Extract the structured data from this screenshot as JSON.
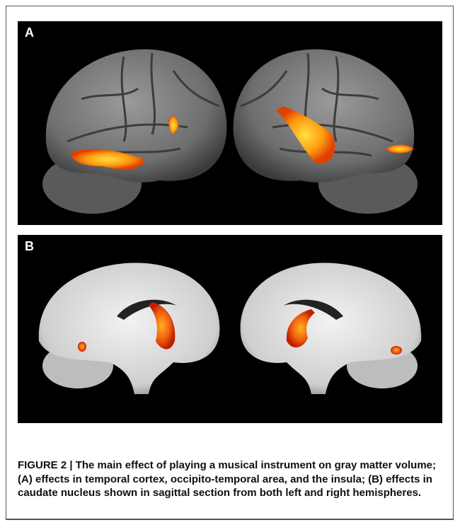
{
  "figure": {
    "panels": [
      {
        "label": "A"
      },
      {
        "label": "B"
      }
    ],
    "label": "FIGURE 2 |",
    "caption": "The main effect of playing a musical instrument on gray matter volume; (A) effects in temporal cortex, occipito-temporal area, and the insula; (B) effects in caudate nucleus shown in sagittal section from both left and right hemispheres."
  }
}
